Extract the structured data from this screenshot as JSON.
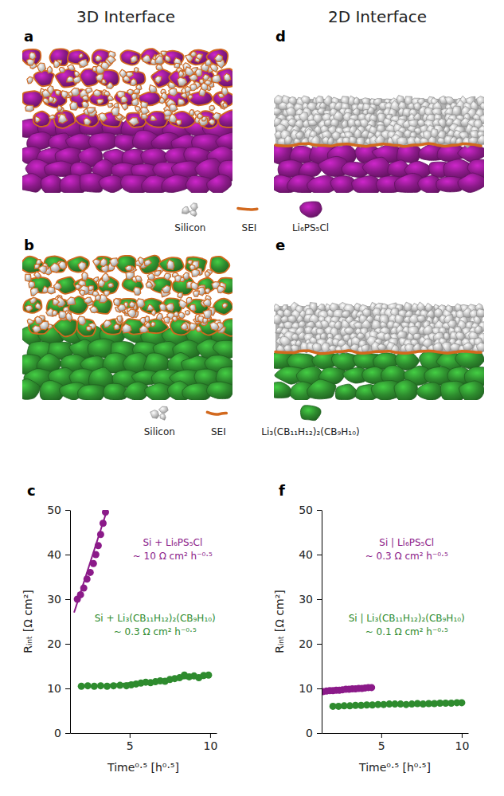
{
  "figure": {
    "columns": [
      "3D Interface",
      "2D Interface"
    ],
    "panel_letters": [
      "a",
      "b",
      "d",
      "e"
    ],
    "legends": [
      {
        "items": [
          {
            "label": "Silicon",
            "color": "#c4c4c4"
          },
          {
            "label": "SEI",
            "color": "#d2691e"
          },
          {
            "label": "Li₆PS₅Cl",
            "color": "#8b1a89"
          }
        ]
      },
      {
        "items": [
          {
            "label": "Silicon",
            "color": "#c4c4c4"
          },
          {
            "label": "SEI",
            "color": "#d2691e"
          },
          {
            "label": "Li₃(CB₁₁H₁₂)₂(CB₉H₁₀)",
            "color": "#2e8b2e"
          }
        ]
      }
    ]
  },
  "chart_data": [
    {
      "type": "scatter",
      "panel_label": "c",
      "xlabel": "Time⁰·⁵ [h⁰·⁵]",
      "ylabel": "Rᵢₙₜ [Ω cm²]",
      "xlim": [
        1.3,
        10.4
      ],
      "xticks": [
        5,
        10
      ],
      "ylim": [
        0,
        50
      ],
      "yticks": [
        0,
        10,
        20,
        30,
        40,
        50
      ],
      "series": [
        {
          "name": "Si + Li₆PS₅Cl",
          "annotation": "~ 10 Ω cm² h⁻⁰·⁵",
          "color": "#8b1a89",
          "x": [
            1.75,
            1.95,
            2.15,
            2.35,
            2.55,
            2.75,
            2.9,
            3.05,
            3.2,
            3.35,
            3.5
          ],
          "values": [
            30,
            31,
            32.5,
            34.5,
            36,
            38,
            40,
            42,
            44.5,
            47,
            49.5
          ],
          "fit_x": [
            1.55,
            3.6
          ],
          "fit_values": [
            27,
            50
          ]
        },
        {
          "name": "Si + Li₃(CB₁₁H₁₂)₂(CB₉H₁₀)",
          "annotation": "~ 0.3 Ω cm² h⁻⁰·⁵",
          "color": "#2e8b2e",
          "x": [
            2.0,
            2.4,
            2.8,
            3.2,
            3.6,
            4.0,
            4.4,
            4.8,
            5.1,
            5.4,
            5.7,
            6.0,
            6.3,
            6.6,
            6.9,
            7.2,
            7.5,
            7.8,
            8.1,
            8.4,
            8.7,
            9.0,
            9.3,
            9.6,
            9.9
          ],
          "values": [
            10.5,
            10.6,
            10.5,
            10.6,
            10.5,
            10.6,
            10.7,
            10.6,
            10.8,
            11.0,
            11.2,
            11.4,
            11.3,
            11.5,
            11.7,
            11.6,
            12.0,
            12.2,
            12.4,
            13.0,
            12.6,
            12.8,
            12.4,
            12.9,
            13.0
          ],
          "fit_x": [
            2.0,
            10.0
          ],
          "fit_values": [
            10.3,
            12.7
          ]
        }
      ]
    },
    {
      "type": "scatter",
      "panel_label": "f",
      "xlabel": "Time⁰·⁵ [h⁰·⁵]",
      "ylabel": "Rᵢₙₜ [Ω cm²]",
      "xlim": [
        1.3,
        10.4
      ],
      "xticks": [
        5,
        10
      ],
      "ylim": [
        0,
        50
      ],
      "yticks": [
        0,
        10,
        20,
        30,
        40,
        50
      ],
      "series": [
        {
          "name": "Si | Li₆PS₅Cl",
          "annotation": "~ 0.3 Ω cm² h⁻⁰·⁵",
          "color": "#8b1a89",
          "x": [
            1.4,
            1.6,
            1.8,
            2.0,
            2.2,
            2.4,
            2.6,
            2.8,
            3.0,
            3.2,
            3.4,
            3.6,
            3.8,
            4.0,
            4.2,
            4.4
          ],
          "values": [
            9.3,
            9.4,
            9.5,
            9.5,
            9.6,
            9.6,
            9.7,
            9.8,
            9.8,
            9.9,
            9.9,
            10.0,
            10.0,
            10.1,
            10.2,
            10.2
          ],
          "fit_x": [
            1.3,
            4.6
          ],
          "fit_values": [
            9.3,
            10.3
          ]
        },
        {
          "name": "Si | Li₃(CB₁₁H₁₂)₂(CB₉H₁₀)",
          "annotation": "~ 0.1 Ω cm² h⁻⁰·⁵",
          "color": "#2e8b2e",
          "x": [
            2.0,
            2.35,
            2.7,
            3.05,
            3.4,
            3.75,
            4.1,
            4.45,
            4.8,
            5.15,
            5.5,
            5.85,
            6.2,
            6.55,
            6.9,
            7.25,
            7.6,
            7.95,
            8.3,
            8.65,
            9.0,
            9.35,
            9.7,
            10.0
          ],
          "values": [
            6.0,
            6.0,
            6.1,
            6.1,
            6.2,
            6.2,
            6.3,
            6.3,
            6.4,
            6.4,
            6.5,
            6.5,
            6.5,
            6.4,
            6.5,
            6.6,
            6.5,
            6.6,
            6.6,
            6.7,
            6.7,
            6.7,
            6.8,
            6.8
          ],
          "fit_x": [
            2.0,
            10.0
          ],
          "fit_values": [
            6.0,
            6.8
          ]
        }
      ]
    }
  ]
}
